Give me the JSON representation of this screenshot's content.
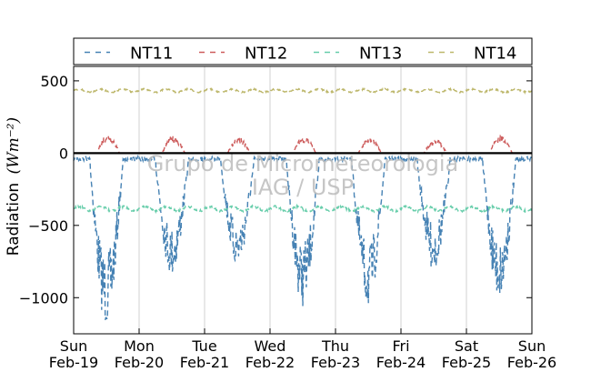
{
  "chart_data": {
    "type": "line",
    "ylabel": "Radiation",
    "ylabel_unit": "(Wm⁻²)",
    "ylim": [
      -1250,
      600
    ],
    "yticks": [
      {
        "value": 500,
        "label": "500"
      },
      {
        "value": 0,
        "label": "0"
      },
      {
        "value": -500,
        "label": "−500"
      },
      {
        "value": -1000,
        "label": "−1000"
      }
    ],
    "xlim": [
      0,
      7
    ],
    "xticks": [
      {
        "value": 0,
        "day": "Sun",
        "date": "Feb-19"
      },
      {
        "value": 1,
        "day": "Mon",
        "date": "Feb-20"
      },
      {
        "value": 2,
        "day": "Tue",
        "date": "Feb-21"
      },
      {
        "value": 3,
        "day": "Wed",
        "date": "Feb-22"
      },
      {
        "value": 4,
        "day": "Thu",
        "date": "Feb-23"
      },
      {
        "value": 5,
        "day": "Fri",
        "date": "Feb-24"
      },
      {
        "value": 6,
        "day": "Sat",
        "date": "Feb-25"
      },
      {
        "value": 7,
        "day": "Sun",
        "date": "Feb-26"
      }
    ],
    "grid": true,
    "zero_line": true,
    "legend_position": "top",
    "series": [
      {
        "name": "NT11",
        "color": "#4682b4",
        "night_level": -80,
        "day_min": [
          -1200,
          -850,
          -800,
          -1060,
          -1080,
          -820,
          -1020
        ],
        "jitter": 110
      },
      {
        "name": "NT12",
        "color": "#cd5c5c",
        "night_level": 0,
        "day_max": [
          140,
          120,
          110,
          120,
          110,
          100,
          130
        ],
        "jitter": 25
      },
      {
        "name": "NT13",
        "color": "#66cdaa",
        "base": -385,
        "jitter": 15
      },
      {
        "name": "NT14",
        "color": "#bdb76b",
        "base": 432,
        "jitter": 10
      }
    ]
  },
  "watermark": {
    "line1": "Grupo de Micrometeorologia",
    "line2": "IAG / USP"
  }
}
